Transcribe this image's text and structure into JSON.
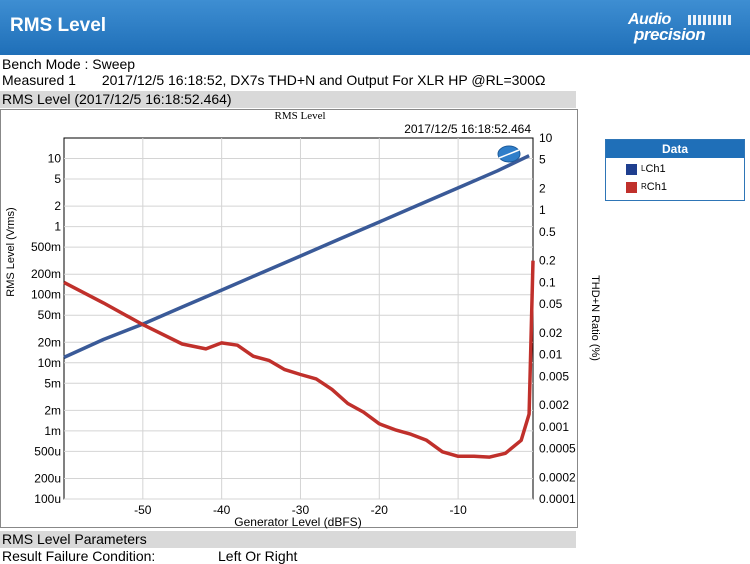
{
  "header": {
    "title": "RMS Level",
    "logo_line1": "Audio",
    "logo_line2": "precision"
  },
  "bench_mode": "Bench Mode : Sweep",
  "measured_label": "Measured 1",
  "measured_desc": "2017/12/5 16:18:52, DX7s THD+N and Output For  XLR HP @RL=300Ω",
  "chart_section_title": "RMS Level (2017/12/5 16:18:52.464)",
  "params_section_title": "RMS Level Parameters",
  "result_failure_label": "Result Failure Condition:",
  "result_failure_value": "Left Or Right",
  "legend": {
    "header": "Data",
    "entries": [
      {
        "sup": "L",
        "label": "Ch1",
        "color": "#1f3f8f"
      },
      {
        "sup": "R",
        "label": "Ch1",
        "color": "#c0302b"
      }
    ]
  },
  "chart_data": {
    "type": "line",
    "title": "RMS Level",
    "timestamp": "2017/12/5 16:18:52.464",
    "xlabel": "Generator Level (dBFS)",
    "ylabel_left": "RMS Level (Vrms)",
    "ylabel_right": "THD+N Ratio (%)",
    "x_range": [
      -60,
      -0.5
    ],
    "x_ticks": [
      -50,
      -40,
      -30,
      -20,
      -10
    ],
    "y_left_range": [
      0.0001,
      20
    ],
    "y_left_ticks": [
      {
        "v": 10,
        "label": "10"
      },
      {
        "v": 5,
        "label": "5"
      },
      {
        "v": 2,
        "label": "2"
      },
      {
        "v": 1,
        "label": "1"
      },
      {
        "v": 0.5,
        "label": "500m"
      },
      {
        "v": 0.2,
        "label": "200m"
      },
      {
        "v": 0.1,
        "label": "100m"
      },
      {
        "v": 0.05,
        "label": "50m"
      },
      {
        "v": 0.02,
        "label": "20m"
      },
      {
        "v": 0.01,
        "label": "10m"
      },
      {
        "v": 0.005,
        "label": "5m"
      },
      {
        "v": 0.002,
        "label": "2m"
      },
      {
        "v": 0.001,
        "label": "1m"
      },
      {
        "v": 0.0005,
        "label": "500u"
      },
      {
        "v": 0.0002,
        "label": "200u"
      },
      {
        "v": 0.0001,
        "label": "100u"
      }
    ],
    "y_right_range": [
      0.0001,
      10
    ],
    "y_right_ticks": [
      {
        "v": 10,
        "label": "10"
      },
      {
        "v": 5,
        "label": "5"
      },
      {
        "v": 2,
        "label": "2"
      },
      {
        "v": 1,
        "label": "1"
      },
      {
        "v": 0.5,
        "label": "0.5"
      },
      {
        "v": 0.2,
        "label": "0.2"
      },
      {
        "v": 0.1,
        "label": "0.1"
      },
      {
        "v": 0.05,
        "label": "0.05"
      },
      {
        "v": 0.02,
        "label": "0.02"
      },
      {
        "v": 0.01,
        "label": "0.01"
      },
      {
        "v": 0.005,
        "label": "0.005"
      },
      {
        "v": 0.002,
        "label": "0.002"
      },
      {
        "v": 0.001,
        "label": "0.001"
      },
      {
        "v": 0.0005,
        "label": "0.0005"
      },
      {
        "v": 0.0002,
        "label": "0.0002"
      },
      {
        "v": 0.0001,
        "label": "0.0001"
      }
    ],
    "grid": true,
    "legend_position": "right",
    "series": [
      {
        "axis": "left",
        "color": "#3a5a98",
        "x": [
          -60,
          -55,
          -50,
          -45,
          -40,
          -35,
          -30,
          -25,
          -20,
          -15,
          -10,
          -5,
          -1
        ],
        "y": [
          0.012,
          0.022,
          0.037,
          0.066,
          0.117,
          0.208,
          0.37,
          0.66,
          1.17,
          2.08,
          3.7,
          6.6,
          11
        ]
      },
      {
        "axis": "right",
        "color": "#c0302b",
        "x": [
          -60,
          -55,
          -50,
          -45,
          -42,
          -40,
          -38,
          -36,
          -34,
          -32,
          -30,
          -28,
          -26,
          -24,
          -22,
          -20,
          -18,
          -16,
          -14,
          -12,
          -10,
          -8,
          -6,
          -4,
          -2,
          -1,
          -0.5
        ],
        "y": [
          0.1,
          0.052,
          0.026,
          0.014,
          0.012,
          0.0145,
          0.0135,
          0.0095,
          0.0083,
          0.0062,
          0.0053,
          0.0046,
          0.0033,
          0.0021,
          0.0016,
          0.0011,
          0.00091,
          0.00079,
          0.00065,
          0.00045,
          0.00039,
          0.00039,
          0.00038,
          0.00043,
          0.00065,
          0.0015,
          0.2
        ]
      }
    ]
  }
}
